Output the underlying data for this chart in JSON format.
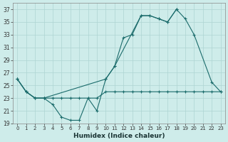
{
  "xlabel": "Humidex (Indice chaleur)",
  "background_color": "#ceecea",
  "grid_color": "#aed4d2",
  "line_color": "#1a6b6b",
  "ylim": [
    19,
    38
  ],
  "xlim": [
    -0.5,
    23.5
  ],
  "yticks": [
    19,
    21,
    23,
    25,
    27,
    29,
    31,
    33,
    35,
    37
  ],
  "xticks": [
    0,
    1,
    2,
    3,
    4,
    5,
    6,
    7,
    8,
    9,
    10,
    11,
    12,
    13,
    14,
    15,
    16,
    17,
    18,
    19,
    20,
    21,
    22,
    23
  ],
  "line_zigzag_x": [
    0,
    1,
    2,
    3,
    4,
    5,
    6,
    7,
    8,
    9,
    10,
    11,
    12,
    13,
    14,
    15,
    16,
    17,
    18
  ],
  "line_zigzag_y": [
    26,
    24,
    23,
    23,
    22,
    20,
    19.5,
    19.5,
    23,
    21,
    26,
    28,
    32.5,
    33,
    36,
    36,
    35.5,
    35,
    37
  ],
  "line_upper_x": [
    0,
    1,
    2,
    3,
    10,
    11,
    14,
    15,
    16,
    17,
    18,
    19,
    20,
    22,
    23
  ],
  "line_upper_y": [
    26,
    24,
    23,
    23,
    26,
    28,
    36,
    36,
    35.5,
    35,
    37,
    35.5,
    33,
    25.5,
    24
  ],
  "line_flat_x": [
    0,
    1,
    2,
    3,
    4,
    5,
    6,
    7,
    8,
    9,
    10,
    11,
    12,
    13,
    14,
    15,
    16,
    17,
    18,
    19,
    20,
    21,
    22,
    23
  ],
  "line_flat_y": [
    26,
    24,
    23,
    23,
    23,
    23,
    23,
    23,
    23,
    23,
    24,
    24,
    24,
    24,
    24,
    24,
    24,
    24,
    24,
    24,
    24,
    24,
    24,
    24
  ]
}
